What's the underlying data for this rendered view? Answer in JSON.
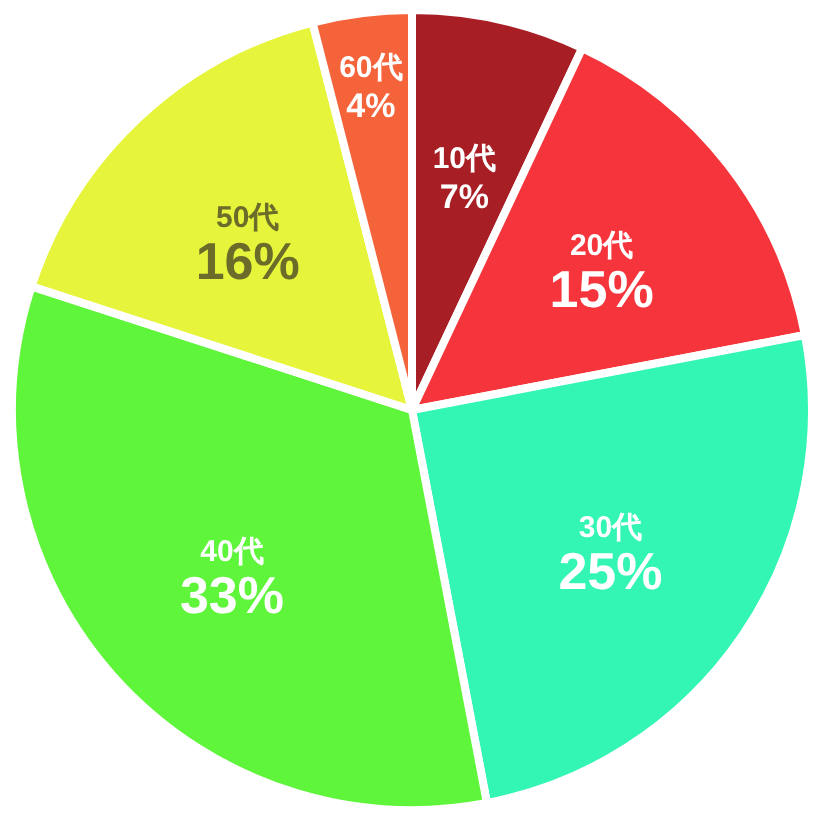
{
  "chart_data": {
    "type": "pie",
    "categories": [
      "10代",
      "20代",
      "30代",
      "40代",
      "50代",
      "60代"
    ],
    "values": [
      7,
      15,
      25,
      33,
      16,
      4
    ],
    "value_labels": [
      "7%",
      "15%",
      "25%",
      "33%",
      "16%",
      "4%"
    ],
    "colors": [
      "#a81e25",
      "#f5353b",
      "#33f5b4",
      "#5ef53a",
      "#e6f53c",
      "#f5633a"
    ]
  }
}
